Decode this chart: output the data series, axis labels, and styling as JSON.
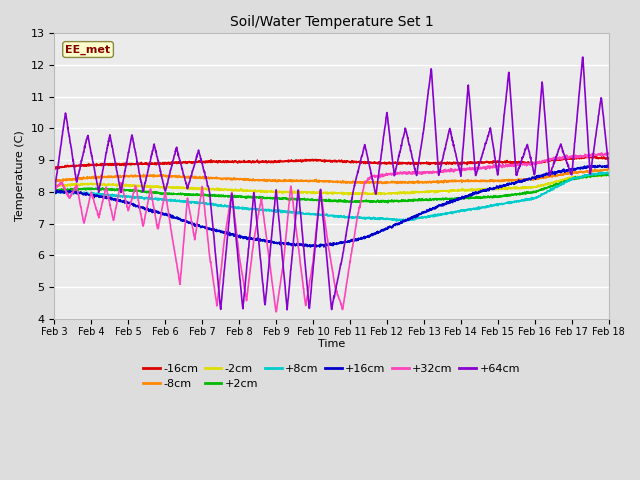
{
  "title": "Soil/Water Temperature Set 1",
  "xlabel": "Time",
  "ylabel": "Temperature (C)",
  "ylim": [
    4.0,
    13.0
  ],
  "yticks": [
    4.0,
    5.0,
    6.0,
    7.0,
    8.0,
    9.0,
    10.0,
    11.0,
    12.0,
    13.0
  ],
  "xtick_labels": [
    "Feb 3",
    "Feb 4",
    "Feb 5",
    "Feb 6",
    "Feb 7",
    "Feb 8",
    "Feb 9",
    "Feb 10",
    "Feb 11",
    "Feb 12",
    "Feb 13",
    "Feb 14",
    "Feb 15",
    "Feb 16",
    "Feb 17",
    "Feb 18"
  ],
  "annotation_text": "EE_met",
  "annotation_bg": "#ffffcc",
  "annotation_border": "#888844",
  "annotation_text_color": "#880000",
  "series_colors": {
    "-16cm": "#dd0000",
    "-8cm": "#ff8800",
    "-2cm": "#dddd00",
    "+2cm": "#00bb00",
    "+8cm": "#00cccc",
    "+16cm": "#0000cc",
    "+32cm": "#ff44bb",
    "+64cm": "#8800cc"
  },
  "series_lw": 1.2,
  "fig_facecolor": "#dddddd",
  "axes_facecolor": "#ebebeb",
  "grid_color": "#ffffff",
  "spine_color": "#bbbbbb"
}
